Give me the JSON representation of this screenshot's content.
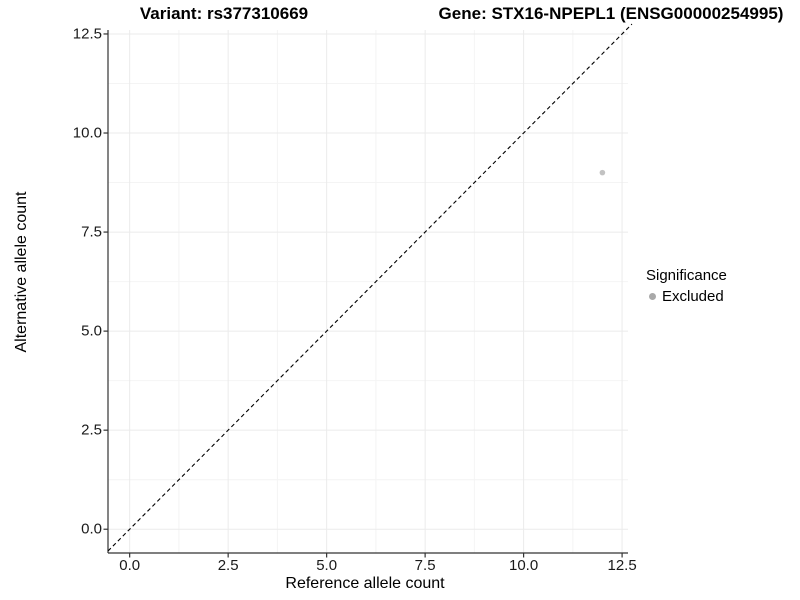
{
  "chart_data": {
    "type": "scatter",
    "title_left": "Variant: rs377310669",
    "title_right": "Gene: STX16-NPEPL1 (ENSG00000254995)",
    "xlabel": "Reference allele count",
    "ylabel": "Alternative allele count",
    "xlim": [
      -0.55,
      12.65
    ],
    "ylim": [
      -0.6,
      12.6
    ],
    "x_ticks": [
      0,
      2.5,
      5,
      7.5,
      10,
      12.5
    ],
    "x_tick_labels": [
      "0.0",
      "2.5",
      "5.0",
      "7.5",
      "10.0",
      "12.5"
    ],
    "y_ticks": [
      0,
      2.5,
      5,
      7.5,
      10,
      12.5
    ],
    "y_tick_labels": [
      "0.0",
      "2.5",
      "5.0",
      "7.5",
      "10.0",
      "12.5"
    ],
    "grid": {
      "major": true,
      "minor": true
    },
    "points": [
      {
        "x": 12,
        "y": 9,
        "significance": "Excluded"
      }
    ],
    "reference_line": {
      "kind": "diagonal",
      "slope": 1,
      "intercept": 0,
      "style": "dashed"
    },
    "legend": {
      "title": "Significance",
      "position": "right",
      "entries": [
        {
          "label": "Excluded",
          "color": "#a9a9a9"
        }
      ]
    },
    "colors": {
      "background": "#ffffff",
      "grid_major": "#ebebeb",
      "grid_minor": "#f4f4f4",
      "axis_line": "#333333",
      "tick_mark": "#333333",
      "text": "#000000",
      "point_fill": "#c2c2c2",
      "reference_line": "#000000"
    }
  }
}
